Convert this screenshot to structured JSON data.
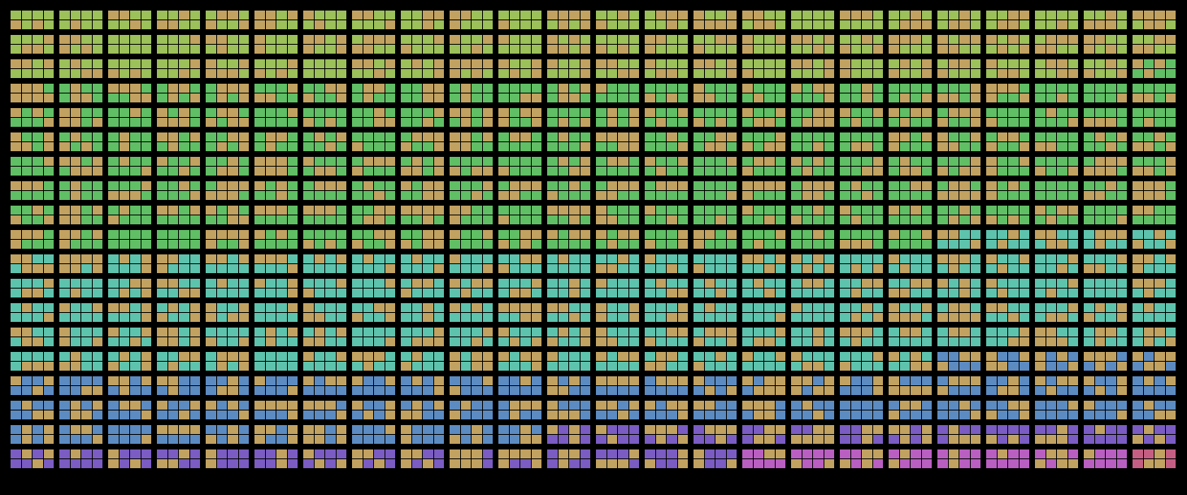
{
  "board": {
    "rows": 19,
    "cols": 24,
    "palette": {
      "unit": "#c2a261",
      "light-green": "#9cc05a",
      "green": "#60bf65",
      "teal": "#5ec3ad",
      "blue": "#5c8bc2",
      "purple": "#7a5cc3",
      "magenta": "#b95fc2",
      "rose": "#c45f83"
    },
    "row_colors": [
      "light-green",
      "light-green",
      "light-green",
      "green",
      "green",
      "green",
      "green",
      "green",
      "green",
      "green",
      "teal",
      "teal",
      "teal",
      "teal",
      "teal",
      "blue",
      "blue",
      "blue",
      "purple"
    ]
  }
}
